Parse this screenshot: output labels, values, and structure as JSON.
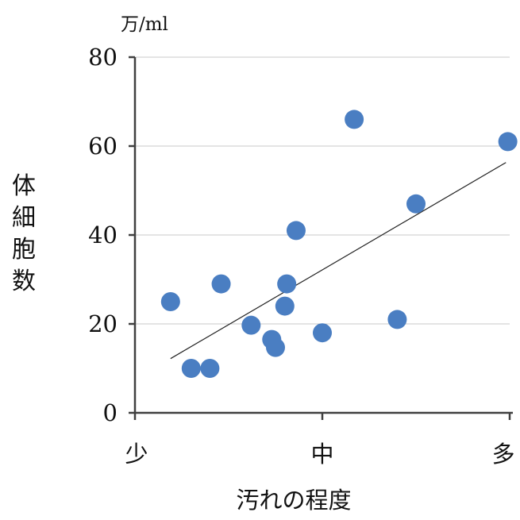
{
  "chart_data": {
    "type": "scatter",
    "title": "",
    "unit": "万/ml",
    "ylabel_chars": [
      "体",
      "細",
      "胞",
      "数"
    ],
    "xlabel": "汚れの程度",
    "x_categories": [
      {
        "label": "少",
        "value": 0
      },
      {
        "label": "中",
        "value": 10
      },
      {
        "label": "多",
        "value": 20
      }
    ],
    "xlim": [
      0,
      20
    ],
    "ylim": [
      0,
      80
    ],
    "yticks": [
      0,
      20,
      40,
      60,
      80
    ],
    "grid": true,
    "marker_color": "#4a7ec2",
    "trendline": {
      "x": [
        1.9,
        19.8
      ],
      "y": [
        12.2,
        56.3
      ]
    },
    "points": [
      {
        "x": 1.9,
        "y": 25
      },
      {
        "x": 3.0,
        "y": 10
      },
      {
        "x": 4.0,
        "y": 10
      },
      {
        "x": 4.6,
        "y": 29
      },
      {
        "x": 6.2,
        "y": 19.7
      },
      {
        "x": 7.3,
        "y": 16.5
      },
      {
        "x": 7.5,
        "y": 14.7
      },
      {
        "x": 8.0,
        "y": 24
      },
      {
        "x": 8.1,
        "y": 29
      },
      {
        "x": 8.6,
        "y": 41
      },
      {
        "x": 10.0,
        "y": 18
      },
      {
        "x": 11.7,
        "y": 66
      },
      {
        "x": 14.0,
        "y": 21
      },
      {
        "x": 15.0,
        "y": 47
      },
      {
        "x": 19.9,
        "y": 61
      }
    ]
  }
}
